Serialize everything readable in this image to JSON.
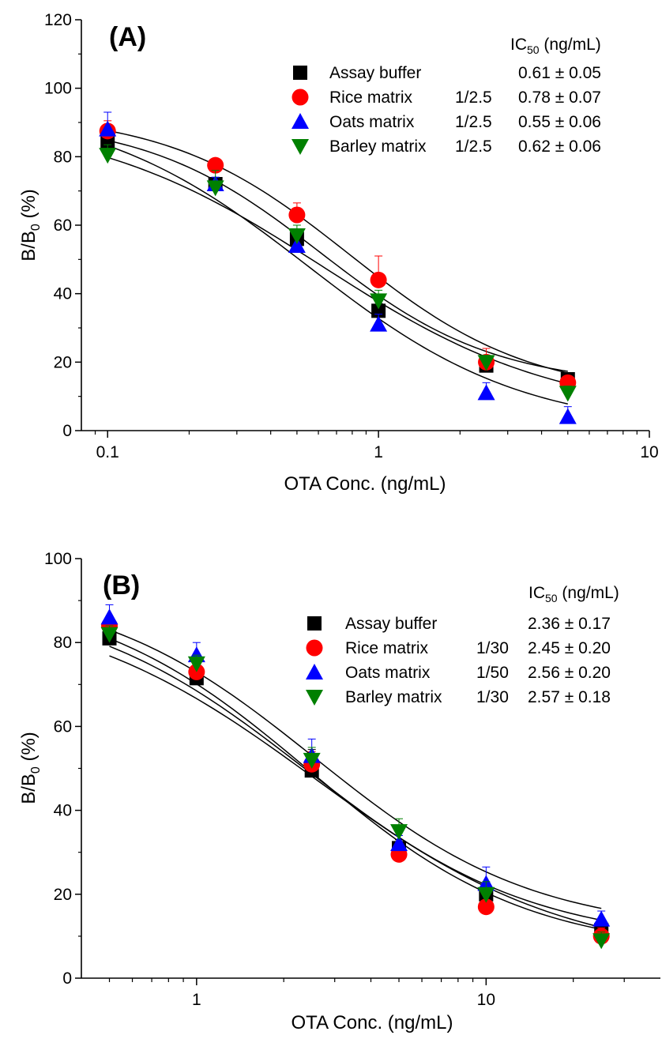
{
  "chart_data": [
    {
      "type": "scatter",
      "panel_label": "(A)",
      "xlabel": "OTA Conc. (ng/mL)",
      "ylabel": "B/B0 (%)",
      "xscale": "log",
      "xlim": [
        0.08,
        10
      ],
      "ylim": [
        0,
        120
      ],
      "xticks": [
        0.1,
        1,
        10
      ],
      "xtick_labels": [
        "0.1",
        "1",
        "10"
      ],
      "yticks": [
        0,
        20,
        40,
        60,
        80,
        100,
        120
      ],
      "ytick_labels": [
        "0",
        "20",
        "40",
        "60",
        "80",
        "100",
        "120"
      ],
      "legend_header": "IC50 (ng/mL)",
      "legend_placement": "top-right",
      "fit": "four-parameter logistic",
      "series": [
        {
          "name": "Assay buffer",
          "dilution": "",
          "ic50": "0.61 ± 0.05",
          "marker": "square",
          "color": "#000000",
          "x": [
            0.1,
            0.25,
            0.5,
            1,
            2.5,
            5
          ],
          "y": [
            84,
            72,
            56,
            35,
            19,
            15
          ],
          "err": [
            2,
            2,
            2,
            3,
            3,
            1
          ],
          "curve": {
            "top": 91,
            "bottom": 13,
            "ic50": 0.61,
            "slope": 1.35
          }
        },
        {
          "name": "Rice matrix",
          "dilution": "1/2.5",
          "ic50": "0.78 ± 0.07",
          "marker": "circle",
          "color": "#ff0000",
          "x": [
            0.1,
            0.25,
            0.5,
            1,
            2.5,
            5
          ],
          "y": [
            87.5,
            77.5,
            63,
            44,
            20,
            14
          ],
          "err": [
            3,
            1,
            3.5,
            7,
            4,
            2
          ],
          "curve": {
            "top": 93,
            "bottom": 10,
            "ic50": 0.78,
            "slope": 1.3
          }
        },
        {
          "name": "Oats matrix",
          "dilution": "1/2.5",
          "ic50": "0.55 ± 0.06",
          "marker": "triangle-up",
          "color": "#0000ff",
          "x": [
            0.1,
            0.25,
            0.5,
            1,
            2.5,
            5
          ],
          "y": [
            88,
            72,
            54,
            31,
            11,
            4
          ],
          "err": [
            5,
            2,
            3,
            3,
            3,
            3
          ],
          "curve": {
            "top": 96,
            "bottom": 0,
            "ic50": 0.55,
            "slope": 1.1
          }
        },
        {
          "name": "Barley matrix",
          "dilution": "1/2.5",
          "ic50": "0.62 ± 0.06",
          "marker": "triangle-down",
          "color": "#008000",
          "x": [
            0.1,
            0.25,
            0.5,
            1,
            2.5,
            5
          ],
          "y": [
            80.5,
            71,
            57,
            38,
            20,
            11
          ],
          "err": [
            3,
            5,
            3,
            3,
            2,
            2
          ],
          "curve": {
            "top": 92,
            "bottom": 4,
            "ic50": 0.62,
            "slope": 1.0
          }
        }
      ]
    },
    {
      "type": "scatter",
      "panel_label": "(B)",
      "xlabel": "OTA Conc. (ng/mL)",
      "ylabel": "B/B0 (%)",
      "xscale": "log",
      "xlim": [
        0.4,
        40
      ],
      "ylim": [
        0,
        100
      ],
      "xticks": [
        1,
        10
      ],
      "xtick_labels": [
        "1",
        "10"
      ],
      "yticks": [
        0,
        20,
        40,
        60,
        80,
        100
      ],
      "ytick_labels": [
        "0",
        "20",
        "40",
        "60",
        "80",
        "100"
      ],
      "legend_header": "IC50 (ng/mL)",
      "legend_placement": "top-right",
      "fit": "four-parameter logistic",
      "series": [
        {
          "name": "Assay buffer",
          "dilution": "",
          "ic50": "2.36 ± 0.17",
          "marker": "square",
          "color": "#000000",
          "x": [
            0.5,
            1,
            2.5,
            5,
            10,
            25
          ],
          "y": [
            81,
            71.5,
            49.5,
            31,
            20,
            11.5
          ],
          "err": [
            2,
            2,
            5,
            2,
            2,
            2
          ],
          "curve": {
            "top": 92,
            "bottom": 8,
            "ic50": 2.36,
            "slope": 1.1
          }
        },
        {
          "name": "Rice matrix",
          "dilution": "1/30",
          "ic50": "2.45 ± 0.20",
          "marker": "circle",
          "color": "#ff0000",
          "x": [
            0.5,
            1,
            2.5,
            5,
            10,
            25
          ],
          "y": [
            84,
            73,
            51,
            29.5,
            17,
            10
          ],
          "err": [
            2,
            2,
            3,
            2,
            3,
            2
          ],
          "curve": {
            "top": 93,
            "bottom": 6,
            "ic50": 2.45,
            "slope": 1.15
          }
        },
        {
          "name": "Oats matrix",
          "dilution": "1/50",
          "ic50": "2.56 ± 0.20",
          "marker": "triangle-up",
          "color": "#0000ff",
          "x": [
            0.5,
            1,
            2.5,
            5,
            10,
            25
          ],
          "y": [
            86,
            77,
            53,
            32,
            22.5,
            14
          ],
          "err": [
            3,
            3,
            4,
            2,
            4,
            2
          ],
          "curve": {
            "top": 94,
            "bottom": 11,
            "ic50": 2.56,
            "slope": 1.15
          }
        },
        {
          "name": "Barley matrix",
          "dilution": "1/30",
          "ic50": "2.57 ± 0.18",
          "marker": "triangle-down",
          "color": "#008000",
          "x": [
            0.5,
            1,
            2.5,
            5,
            10,
            25
          ],
          "y": [
            82,
            75,
            52,
            35,
            20,
            9
          ],
          "err": [
            2,
            2,
            3,
            3,
            3,
            2
          ],
          "curve": {
            "top": 91,
            "bottom": 4,
            "ic50": 2.57,
            "slope": 1.0
          }
        }
      ]
    }
  ]
}
